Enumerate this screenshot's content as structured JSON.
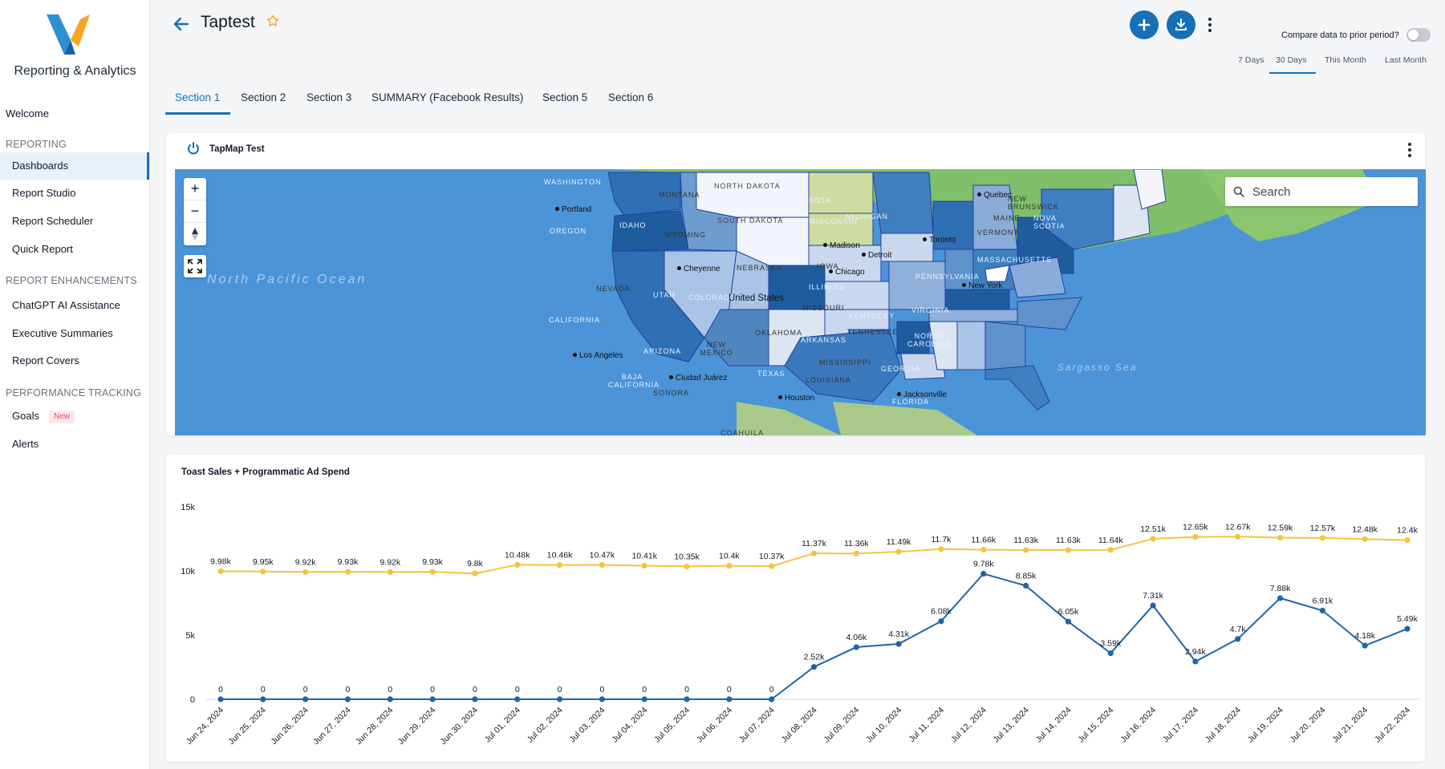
{
  "app": {
    "brand": "Reporting & Analytics"
  },
  "sidebar": {
    "welcome": "Welcome",
    "sections": [
      {
        "title": "REPORTING",
        "items": [
          "Dashboards",
          "Report Studio",
          "Report Scheduler",
          "Quick Report"
        ]
      },
      {
        "title": "REPORT ENHANCEMENTS",
        "items": [
          "ChatGPT AI Assistance",
          "Executive Summaries",
          "Report Covers"
        ]
      },
      {
        "title": "PERFORMANCE TRACKING",
        "items": [
          "Goals",
          "Alerts"
        ]
      }
    ],
    "active_item": "Dashboards",
    "goals_badge": "New"
  },
  "header": {
    "title": "Taptest",
    "compare_label": "Compare data to prior period?",
    "compare_enabled": false,
    "ranges": [
      "7 Days",
      "30 Days",
      "This Month",
      "Last Month"
    ],
    "active_range": "30 Days"
  },
  "tabs": [
    "Section 1",
    "Section 2",
    "Section 3",
    "SUMMARY (Facebook Results)",
    "Section 5",
    "Section 6"
  ],
  "active_tab": "Section 1",
  "map_widget": {
    "title": "TapMap Test",
    "search_placeholder": "Search",
    "zoom_in": "+",
    "zoom_out": "−",
    "labels": {
      "washington": "WASHINGTON",
      "oregon": "OREGON",
      "idaho": "IDAHO",
      "montana": "MONTANA",
      "wyoming": "WYOMING",
      "north_dakota": "NORTH DAKOTA",
      "south_dakota": "SOUTH DAKOTA",
      "minnesota": "MINNESOTA",
      "wisconsin": "WISCONSIN",
      "michigan": "MICHIGAN",
      "nevada": "NEVADA",
      "utah": "UTAH",
      "colorado": "COLORADO",
      "nebraska": "NEBRASKA",
      "iowa": "IOWA",
      "illinois": "ILLINOIS",
      "california": "CALIFORNIA",
      "arizona": "ARIZONA",
      "new_mexico": "NEW MEXICO",
      "oklahoma": "OKLAHOMA",
      "missouri": "MISSOURI",
      "kentucky": "KENTUCKY",
      "tennessee": "TENNESSEE",
      "arkansas": "ARKANSAS",
      "texas": "TEXAS",
      "louisiana": "LOUISIANA",
      "mississippi": "MISSISSIPPI",
      "georgia": "GEORGIA",
      "florida": "FLORIDA",
      "north_carolina": "NORTH CAROLINA",
      "virginia": "VIRGINIA",
      "pennsylvania": "PENNSYLVANIA",
      "new_york": "NEW YORK",
      "maine": "MAINE",
      "vermont": "VERMONT",
      "massachusetts": "MASSACHUSETTS",
      "new_brunswick": "NEW BRUNSWICK",
      "nova_scotia": "NOVA SCOTIA",
      "baja_california": "BAJA CALIFORNIA",
      "sonora": "SONORA",
      "coahuila": "COAHUILA",
      "country": "United States",
      "ocean_pacific": "North Pacific Ocean",
      "ocean_sargasso": "Sargasso Sea"
    },
    "cities": [
      "Portland",
      "Cheyenne",
      "Madison",
      "Chicago",
      "Detroit",
      "Toronto",
      "Quebec",
      "New York",
      "Los Angeles",
      "Ciudad Juárez",
      "Houston",
      "Jacksonville"
    ]
  },
  "chart_widget": {
    "title": "Toast Sales + Programmatic Ad Spend"
  },
  "chart_data": {
    "type": "line",
    "title": "Toast Sales + Programmatic Ad Spend",
    "x": [
      "Jun 24, 2024",
      "Jun 25, 2024",
      "Jun 26, 2024",
      "Jun 27, 2024",
      "Jun 28, 2024",
      "Jun 29, 2024",
      "Jun 30, 2024",
      "Jul 01, 2024",
      "Jul 02, 2024",
      "Jul 03, 2024",
      "Jul 04, 2024",
      "Jul 05, 2024",
      "Jul 06, 2024",
      "Jul 07, 2024",
      "Jul 08, 2024",
      "Jul 09, 2024",
      "Jul 10, 2024",
      "Jul 11, 2024",
      "Jul 12, 2024",
      "Jul 13, 2024",
      "Jul 14, 2024",
      "Jul 15, 2024",
      "Jul 16, 2024",
      "Jul 17, 2024",
      "Jul 18, 2024",
      "Jul 19, 2024",
      "Jul 20, 2024",
      "Jul 21, 2024",
      "Jul 22, 2024"
    ],
    "series": [
      {
        "color": "#f5c342",
        "values": [
          9980,
          9950,
          9920,
          9930,
          9920,
          9930,
          9800,
          10480,
          10460,
          10470,
          10410,
          10350,
          10400,
          10370,
          11370,
          11360,
          11490,
          11700,
          11660,
          11630,
          11630,
          11640,
          12510,
          12650,
          12670,
          12590,
          12570,
          12480,
          12400
        ],
        "labels": [
          "9.98k",
          "9.95k",
          "9.92k",
          "9.93k",
          "9.92k",
          "9.93k",
          "9.8k",
          "10.48k",
          "10.46k",
          "10.47k",
          "10.41k",
          "10.35k",
          "10.4k",
          "10.37k",
          "11.37k",
          "11.36k",
          "11.49k",
          "11.7k",
          "11.66k",
          "11.63k",
          "11.63k",
          "11.64k",
          "12.51k",
          "12.65k",
          "12.67k",
          "12.59k",
          "12.57k",
          "12.48k",
          "12.4k"
        ]
      },
      {
        "color": "#1f65a6",
        "values": [
          0,
          0,
          0,
          0,
          0,
          0,
          0,
          0,
          0,
          0,
          0,
          0,
          0,
          0,
          2520,
          4060,
          4310,
          6080,
          9780,
          8850,
          6050,
          3590,
          7310,
          2940,
          4700,
          7880,
          6910,
          4180,
          5490
        ],
        "labels": [
          "0",
          "0",
          "0",
          "0",
          "0",
          "0",
          "0",
          "0",
          "0",
          "0",
          "0",
          "0",
          "0",
          "0",
          "2.52k",
          "4.06k",
          "4.31k",
          "6.08k",
          "9.78k",
          "8.85k",
          "6.05k",
          "3.59k",
          "7.31k",
          "2.94k",
          "4.7k",
          "7.88k",
          "6.91k",
          "4.18k",
          "5.49k"
        ]
      }
    ],
    "yticks": [
      "0",
      "5k",
      "10k",
      "15k"
    ],
    "ylim": [
      0,
      15000
    ],
    "grid": false,
    "legend": "none"
  }
}
